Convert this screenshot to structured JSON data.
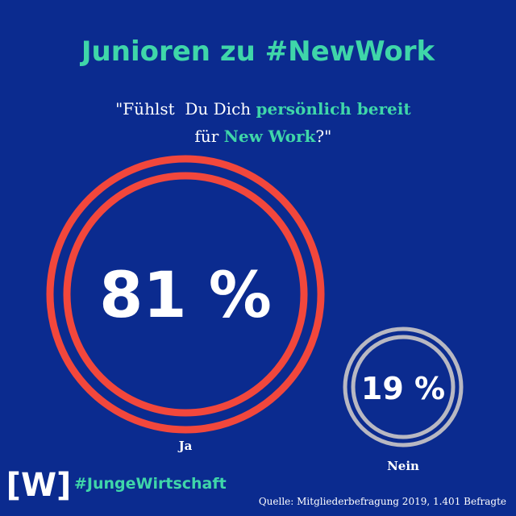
{
  "title": "Junioren zu #NewWork",
  "question": {
    "line1": [
      "\"Fühlst  Du Dich ",
      "persönlich bereit"
    ],
    "line2": [
      "für ",
      "New Work",
      "?\""
    ]
  },
  "results": [
    {
      "value": "81 %",
      "label": "Ja"
    },
    {
      "value": "19 %",
      "label": "Nein"
    }
  ],
  "logo": "[W]",
  "hashtag": "#JungeWirtschaft",
  "source": "Quelle: Mitgliederbefragung 2019, 1.401 Befragte"
}
